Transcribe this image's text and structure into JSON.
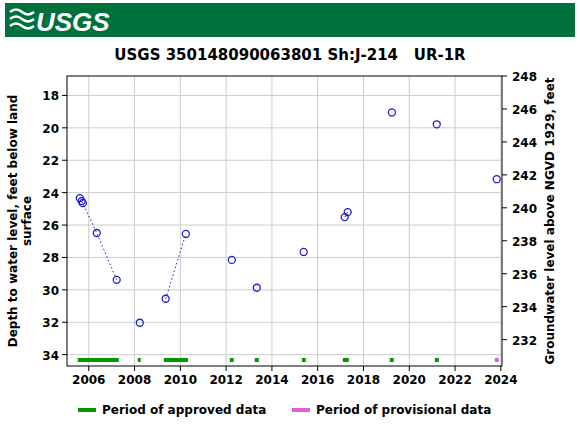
{
  "chart_data": {
    "type": "scatter",
    "logo_text": "USGS",
    "title": "USGS 350148090063801 Sh:J-214   UR-1R",
    "ylabel": [
      "Depth to water level, feet below land",
      "surface"
    ],
    "y2label": "Groundwater level above NGVD 1929, feet",
    "xlim": [
      2005.05,
      2024.05
    ],
    "xticks": [
      2006,
      2008,
      2010,
      2012,
      2014,
      2016,
      2018,
      2020,
      2022,
      2024
    ],
    "ylim": [
      34.7,
      16.8
    ],
    "yticks": [
      18,
      20,
      22,
      24,
      26,
      28,
      30,
      32,
      34
    ],
    "y2lim": [
      230.4,
      248.0
    ],
    "y2ticks": [
      232,
      234,
      236,
      238,
      240,
      242,
      244,
      246,
      248
    ],
    "grid": true,
    "legend": "bottom",
    "series": [
      {
        "type": "line",
        "marker": "circle",
        "line_style": "dotted",
        "color": "#1f1fd0",
        "x": [
          2005.61,
          2005.69,
          2005.74,
          2006.35,
          2007.22,
          null,
          2008.23,
          null,
          2009.36,
          2010.24,
          null,
          2012.25,
          null,
          2013.34,
          null,
          2015.39,
          null,
          2017.18,
          2017.31,
          null,
          2019.24,
          null,
          2021.2,
          null,
          2023.82
        ],
        "values": [
          24.34,
          24.52,
          24.65,
          26.49,
          29.38,
          null,
          32.03,
          null,
          30.55,
          26.55,
          null,
          28.15,
          null,
          29.87,
          null,
          27.66,
          null,
          25.51,
          25.2,
          null,
          19.05,
          null,
          19.78,
          null,
          23.17
        ]
      },
      {
        "type": "period",
        "name": "Period of approved data",
        "color": "#009900",
        "ranges": [
          [
            2005.52,
            2007.31
          ],
          [
            2008.14,
            2008.27
          ],
          [
            2009.28,
            2010.33
          ],
          [
            2012.16,
            2012.33
          ],
          [
            2013.25,
            2013.43
          ],
          [
            2015.31,
            2015.48
          ],
          [
            2017.1,
            2017.36
          ],
          [
            2019.15,
            2019.32
          ],
          [
            2021.12,
            2021.29
          ]
        ]
      },
      {
        "type": "period",
        "name": "Period of provisional data",
        "color": "#e060d8",
        "ranges": [
          [
            2023.74,
            2023.91
          ]
        ]
      }
    ]
  }
}
